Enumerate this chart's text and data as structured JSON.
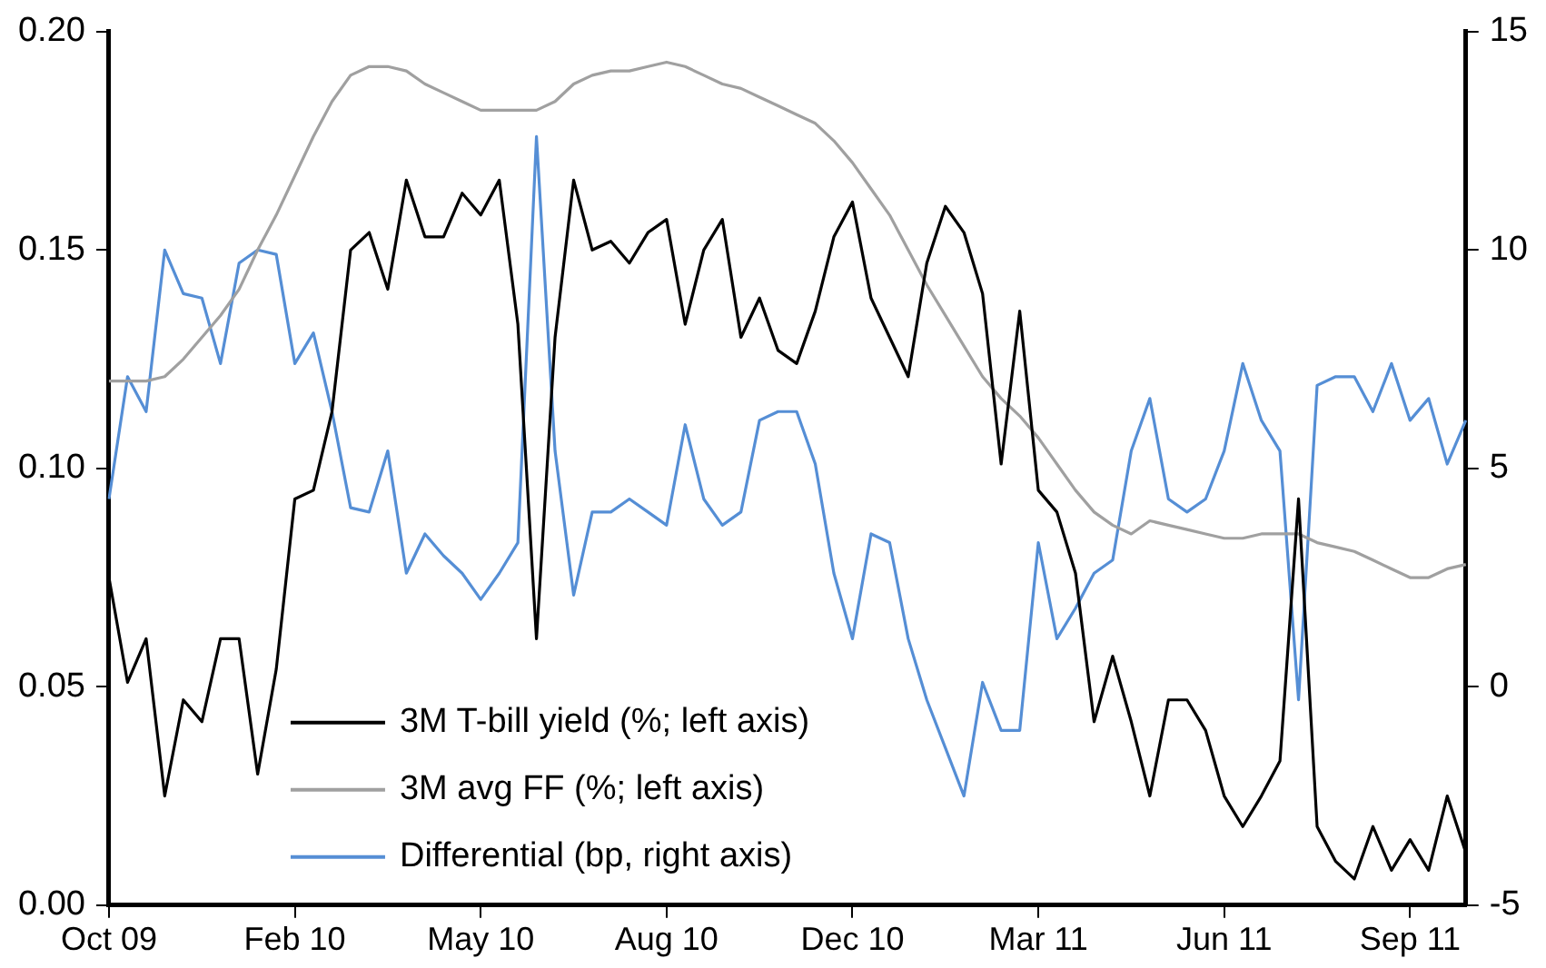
{
  "chart_data": {
    "type": "line",
    "categories": [
      "Oct 09",
      null,
      null,
      null,
      null,
      null,
      null,
      null,
      null,
      null,
      "Feb 10",
      null,
      null,
      null,
      null,
      null,
      null,
      null,
      null,
      null,
      "May 10",
      null,
      null,
      null,
      null,
      null,
      null,
      null,
      null,
      null,
      "Aug 10",
      null,
      null,
      null,
      null,
      null,
      null,
      null,
      null,
      null,
      "Dec 10",
      null,
      null,
      null,
      null,
      null,
      null,
      null,
      null,
      null,
      "Mar 11",
      null,
      null,
      null,
      null,
      null,
      null,
      null,
      null,
      null,
      "Jun 11",
      null,
      null,
      null,
      null,
      null,
      null,
      null,
      null,
      null,
      "Sep 11",
      null,
      null,
      null
    ],
    "series": [
      {
        "name": "3M T-bill yield (%; left axis)",
        "color": "#000000",
        "values": [
          0.075,
          0.051,
          0.061,
          0.025,
          0.047,
          0.042,
          0.061,
          0.061,
          0.03,
          0.054,
          0.093,
          0.095,
          0.113,
          0.15,
          0.154,
          0.141,
          0.166,
          0.153,
          0.153,
          0.163,
          0.158,
          0.166,
          0.133,
          0.061,
          0.13,
          0.166,
          0.15,
          0.152,
          0.147,
          0.154,
          0.157,
          0.133,
          0.15,
          0.157,
          0.13,
          0.139,
          0.127,
          0.124,
          0.136,
          0.153,
          0.161,
          0.139,
          0.13,
          0.121,
          0.147,
          0.16,
          0.154,
          0.14,
          0.101,
          0.136,
          0.095,
          0.09,
          0.076,
          0.042,
          0.057,
          0.042,
          0.025,
          0.047,
          0.047,
          0.04,
          0.025,
          0.018,
          0.025,
          0.033,
          0.093,
          0.018,
          0.01,
          0.006,
          0.018,
          0.008,
          0.015,
          0.008,
          0.025,
          0.012
        ]
      },
      {
        "name": "3M avg FF (%; left axis)",
        "color": "#a0a0a0",
        "values": [
          0.12,
          0.12,
          0.12,
          0.121,
          0.125,
          0.13,
          0.135,
          0.141,
          0.15,
          0.158,
          0.167,
          0.176,
          0.184,
          0.19,
          0.192,
          0.192,
          0.191,
          0.188,
          0.186,
          0.184,
          0.182,
          0.182,
          0.182,
          0.182,
          0.184,
          0.188,
          0.19,
          0.191,
          0.191,
          0.192,
          0.193,
          0.192,
          0.19,
          0.188,
          0.187,
          0.185,
          0.183,
          0.181,
          0.179,
          0.175,
          0.17,
          0.164,
          0.158,
          0.15,
          0.142,
          0.135,
          0.128,
          0.121,
          0.116,
          0.112,
          0.107,
          0.101,
          0.095,
          0.09,
          0.087,
          0.085,
          0.088,
          0.087,
          0.086,
          0.085,
          0.084,
          0.084,
          0.085,
          0.085,
          0.085,
          0.083,
          0.082,
          0.081,
          0.079,
          0.077,
          0.075,
          0.075,
          0.077,
          0.078
        ]
      },
      {
        "name": "Differential (bp, right axis)",
        "color": "#558ed5",
        "axis": "y2",
        "values": [
          4.3,
          7.1,
          6.3,
          10.0,
          9.0,
          8.9,
          7.4,
          9.7,
          10.0,
          9.9,
          7.4,
          8.1,
          6.3,
          4.1,
          4.0,
          5.4,
          2.6,
          3.5,
          3.0,
          2.6,
          2.0,
          2.6,
          3.3,
          12.6,
          5.4,
          2.1,
          4.0,
          4.0,
          4.3,
          4.0,
          3.7,
          6.0,
          4.3,
          3.7,
          4.0,
          6.1,
          6.3,
          6.3,
          5.1,
          2.6,
          1.1,
          3.5,
          3.3,
          1.1,
          -0.3,
          -1.4,
          -2.5,
          0.1,
          -1.0,
          -1.0,
          3.3,
          1.1,
          1.8,
          2.6,
          2.9,
          5.4,
          6.6,
          4.3,
          4.0,
          4.3,
          5.4,
          7.4,
          6.1,
          5.4,
          -0.3,
          6.9,
          7.1,
          7.1,
          6.3,
          7.4,
          6.1,
          6.6,
          5.1,
          6.1
        ]
      }
    ],
    "ylim": [
      0,
      0.2
    ],
    "yticks": [
      {
        "value": 0,
        "label": "0.00"
      },
      {
        "value": 0.05,
        "label": "0.05"
      },
      {
        "value": 0.1,
        "label": "0.10"
      },
      {
        "value": 0.15,
        "label": "0.15"
      },
      {
        "value": 0.2,
        "label": "0.20"
      }
    ],
    "y2lim": [
      -5,
      15
    ],
    "y2ticks": [
      -5,
      0,
      5,
      10,
      15
    ],
    "grid": false,
    "legend": "bottom left",
    "marker": "none",
    "line_style": "solid"
  }
}
